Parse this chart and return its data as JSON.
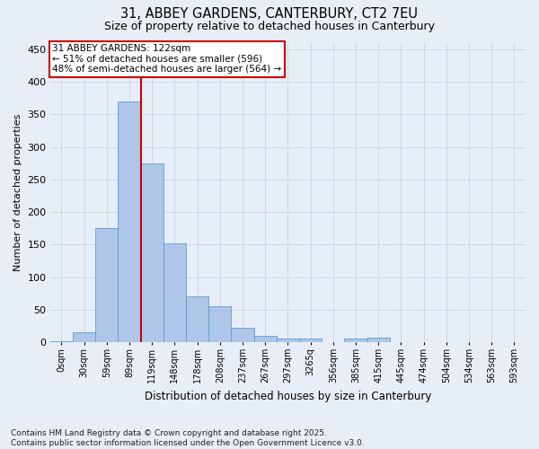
{
  "title_line1": "31, ABBEY GARDENS, CANTERBURY, CT2 7EU",
  "title_line2": "Size of property relative to detached houses in Canterbury",
  "xlabel": "Distribution of detached houses by size in Canterbury",
  "ylabel": "Number of detached properties",
  "annotation_title": "31 ABBEY GARDENS: 122sqm",
  "annotation_line2": "← 51% of detached houses are smaller (596)",
  "annotation_line3": "48% of semi-detached houses are larger (564) →",
  "footnote_line1": "Contains HM Land Registry data © Crown copyright and database right 2025.",
  "footnote_line2": "Contains public sector information licensed under the Open Government Licence v3.0.",
  "bin_labels": [
    "0sqm",
    "30sqm",
    "59sqm",
    "89sqm",
    "119sqm",
    "148sqm",
    "178sqm",
    "208sqm",
    "237sqm",
    "267sqm",
    "297sqm",
    "3265q",
    "356sqm",
    "385sqm",
    "415sqm",
    "445sqm",
    "474sqm",
    "504sqm",
    "534sqm",
    "563sqm",
    "593sqm"
  ],
  "bar_values": [
    2,
    15,
    175,
    370,
    275,
    152,
    70,
    55,
    23,
    10,
    6,
    6,
    0,
    6,
    7,
    0,
    0,
    1,
    0,
    0,
    1
  ],
  "bar_color": "#aec6e8",
  "bar_edge_color": "#5a9fd4",
  "grid_color": "#ccd6e8",
  "bg_color": "#e8eef8",
  "fig_bg_color": "#e8eef8",
  "vline_color": "#cc0000",
  "vline_x": 3.5,
  "annotation_box_color": "#cc0000",
  "ylim": [
    0,
    460
  ],
  "yticks": [
    0,
    50,
    100,
    150,
    200,
    250,
    300,
    350,
    400,
    450
  ],
  "title1_fontsize": 10.5,
  "title2_fontsize": 9,
  "ylabel_fontsize": 8,
  "xlabel_fontsize": 8.5,
  "ytick_fontsize": 8,
  "xtick_fontsize": 7,
  "ann_fontsize": 7.5,
  "footnote_fontsize": 6.5
}
